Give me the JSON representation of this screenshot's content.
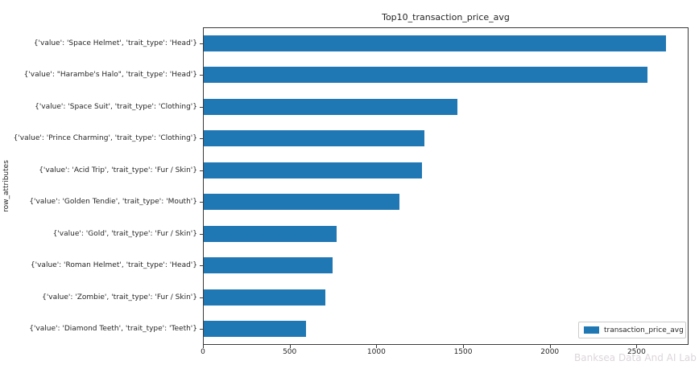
{
  "watermark": "Banksea Data And AI Lab",
  "chart_data": {
    "type": "bar",
    "orientation": "horizontal",
    "title": "Top10_transaction_price_avg",
    "xlabel": "",
    "ylabel": "row_attributes",
    "legend": [
      "transaction_price_avg"
    ],
    "legend_position": "lower right",
    "grid": false,
    "bar_color": "#1f77b4",
    "xlim": [
      0,
      2800
    ],
    "xticks": [
      0,
      500,
      1000,
      1500,
      2000,
      2500
    ],
    "categories": [
      "{'value': 'Space Helmet', 'trait_type': 'Head'}",
      "{'value': \"Harambe's Halo\", 'trait_type': 'Head'}",
      "{'value': 'Space Suit', 'trait_type': 'Clothing'}",
      "{'value': 'Prince Charming', 'trait_type': 'Clothing'}",
      "{'value': 'Acid Trip', 'trait_type': 'Fur / Skin'}",
      "{'value': 'Golden Tendie', 'trait_type': 'Mouth'}",
      "{'value': 'Gold', 'trait_type': 'Fur / Skin'}",
      "{'value': 'Roman Helmet', 'trait_type': 'Head'}",
      "{'value': 'Zombie', 'trait_type': 'Fur / Skin'}",
      "{'value': 'Diamond Teeth', 'trait_type': 'Teeth'}"
    ],
    "values": [
      2665,
      2560,
      1465,
      1270,
      1260,
      1130,
      765,
      745,
      700,
      590
    ]
  }
}
